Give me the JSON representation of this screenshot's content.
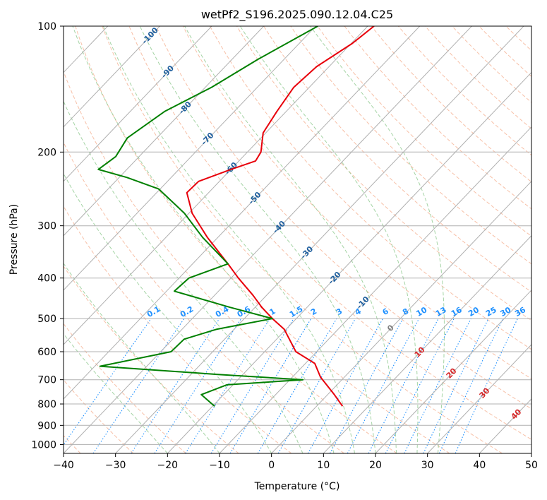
{
  "chart_data": {
    "type": "line",
    "title": "wetPf2_S196.2025.090.12.04.C25",
    "xlabel": "Temperature (°C)",
    "ylabel": "Pressure (hPa)",
    "xlim": [
      -40,
      50
    ],
    "ylim": [
      1050,
      100
    ],
    "y_scale": "log",
    "grid": true,
    "x_ticks": [
      -40,
      -30,
      -20,
      -10,
      0,
      10,
      20,
      30,
      40,
      50
    ],
    "y_ticks": [
      100,
      200,
      300,
      400,
      500,
      600,
      700,
      800,
      900,
      1000
    ],
    "colors": {
      "temperature": "#e8000b",
      "dewpoint": "#008000",
      "isotherm": "#b0b0b0",
      "dry_adiabat": "#f4a582",
      "moist_adiabat": "#8fc98f",
      "mixing_ratio": "#1f77b4",
      "isotherm_label": "#1f5f9e",
      "mixing_label": "#1e90ff",
      "positive_label": "#d62728"
    },
    "series": [
      {
        "kind": "temperature",
        "points": [
          {
            "p": 100,
            "t": -58.8
          },
          {
            "p": 110,
            "t": -59.8
          },
          {
            "p": 125,
            "t": -62.4
          },
          {
            "p": 140,
            "t": -63.0
          },
          {
            "p": 160,
            "t": -61.8
          },
          {
            "p": 180,
            "t": -60.5
          },
          {
            "p": 200,
            "t": -57.4
          },
          {
            "p": 210,
            "t": -56.8
          },
          {
            "p": 220,
            "t": -60.0
          },
          {
            "p": 235,
            "t": -64.0
          },
          {
            "p": 250,
            "t": -64.2
          },
          {
            "p": 280,
            "t": -59.4
          },
          {
            "p": 320,
            "t": -52.0
          },
          {
            "p": 370,
            "t": -43.2
          },
          {
            "p": 400,
            "t": -38.6
          },
          {
            "p": 440,
            "t": -32.6
          },
          {
            "p": 470,
            "t": -28.7
          },
          {
            "p": 500,
            "t": -24.6
          },
          {
            "p": 530,
            "t": -20.4
          },
          {
            "p": 600,
            "t": -14.0
          },
          {
            "p": 640,
            "t": -8.2
          },
          {
            "p": 690,
            "t": -4.6
          },
          {
            "p": 760,
            "t": 1.3
          },
          {
            "p": 810,
            "t": 5.0
          }
        ]
      },
      {
        "kind": "dewpoint",
        "points": [
          {
            "p": 100,
            "t": -69.6
          },
          {
            "p": 120,
            "t": -75.0
          },
          {
            "p": 140,
            "t": -78.8
          },
          {
            "p": 160,
            "t": -83.4
          },
          {
            "p": 185,
            "t": -85.7
          },
          {
            "p": 205,
            "t": -84.5
          },
          {
            "p": 220,
            "t": -85.5
          },
          {
            "p": 230,
            "t": -78.5
          },
          {
            "p": 245,
            "t": -70.3
          },
          {
            "p": 280,
            "t": -60.9
          },
          {
            "p": 320,
            "t": -52.9
          },
          {
            "p": 370,
            "t": -43.2
          },
          {
            "p": 400,
            "t": -48.1
          },
          {
            "p": 430,
            "t": -48.5
          },
          {
            "p": 470,
            "t": -34.8
          },
          {
            "p": 500,
            "t": -24.6
          },
          {
            "p": 530,
            "t": -33.3
          },
          {
            "p": 560,
            "t": -37.8
          },
          {
            "p": 600,
            "t": -38.0
          },
          {
            "p": 650,
            "t": -49.0
          },
          {
            "p": 680,
            "t": -24.8
          },
          {
            "p": 700,
            "t": -7.5
          },
          {
            "p": 720,
            "t": -21.2
          },
          {
            "p": 760,
            "t": -24.3
          },
          {
            "p": 810,
            "t": -19.6
          }
        ]
      }
    ],
    "isotherm_labels": [
      "-100",
      "-90",
      "-80",
      "-70",
      "-60",
      "-50",
      "-40",
      "-30",
      "-20",
      "-10",
      "0",
      "10",
      "20",
      "30",
      "40"
    ],
    "mixing_ratio_labels": [
      "0.1",
      "0.2",
      "0.4",
      "0.6",
      "1",
      "1.5",
      "2",
      "3",
      "4",
      "6",
      "8",
      "10",
      "13",
      "16",
      "20",
      "25",
      "30",
      "36"
    ]
  }
}
